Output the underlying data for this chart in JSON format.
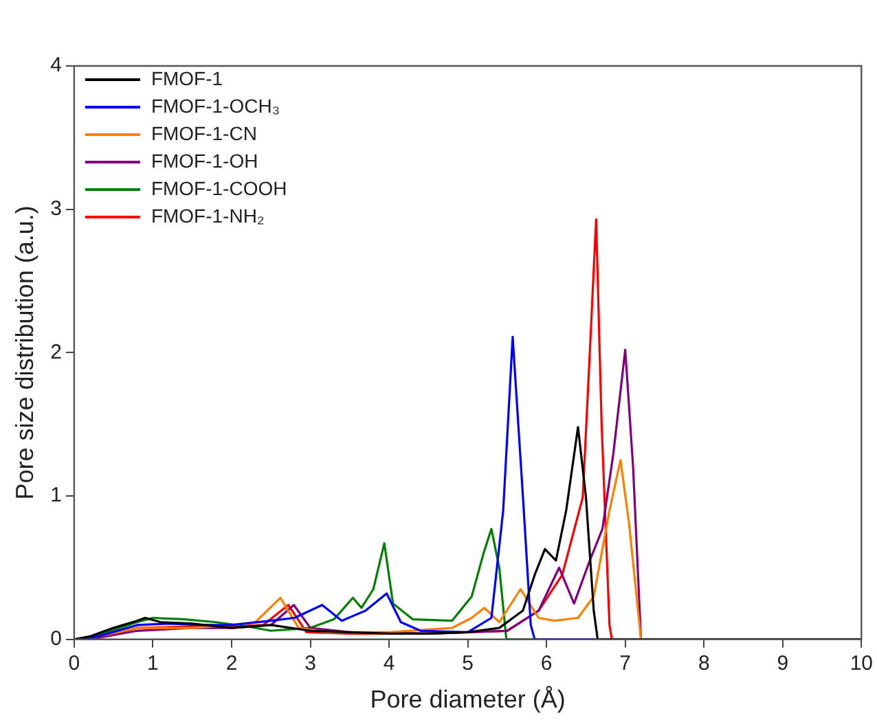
{
  "chart_data": {
    "type": "line",
    "xlabel": "Pore diameter (Å)",
    "ylabel": "Pore size distribution (a.u.)",
    "xlim": [
      0,
      10
    ],
    "ylim": [
      0,
      4
    ],
    "xticks": [
      0,
      1,
      2,
      3,
      4,
      5,
      6,
      7,
      8,
      9,
      10
    ],
    "yticks": [
      0,
      1,
      2,
      3,
      4
    ],
    "grid": false,
    "legend": "top left",
    "marker": "none",
    "line_style": "solid",
    "series": [
      {
        "name": "FMOF-1",
        "color": "#000000",
        "x": [
          0,
          0.2,
          0.5,
          0.8,
          0.9,
          1.1,
          1.5,
          2.0,
          2.5,
          3.0,
          3.5,
          4.0,
          4.5,
          5.0,
          5.4,
          5.7,
          5.85,
          5.98,
          6.12,
          6.25,
          6.4,
          6.5,
          6.6,
          6.65,
          10
        ],
        "values": [
          0,
          0.02,
          0.08,
          0.13,
          0.15,
          0.12,
          0.11,
          0.08,
          0.1,
          0.06,
          0.05,
          0.04,
          0.04,
          0.05,
          0.08,
          0.2,
          0.45,
          0.63,
          0.55,
          0.9,
          1.48,
          1.0,
          0.2,
          0,
          0
        ]
      },
      {
        "name": "FMOF-1-OCH₃",
        "color": "#0000ff",
        "x": [
          0,
          0.3,
          0.8,
          1.2,
          1.6,
          2.0,
          2.5,
          2.8,
          3.15,
          3.4,
          3.7,
          3.97,
          4.15,
          4.4,
          5.0,
          5.3,
          5.45,
          5.57,
          5.7,
          5.8,
          5.85,
          10
        ],
        "values": [
          0,
          0.02,
          0.1,
          0.11,
          0.1,
          0.1,
          0.13,
          0.15,
          0.24,
          0.13,
          0.2,
          0.32,
          0.12,
          0.06,
          0.05,
          0.15,
          0.9,
          2.11,
          1.0,
          0.1,
          0,
          0
        ]
      },
      {
        "name": "FMOF-1-CN",
        "color": "#ff7f00",
        "x": [
          0,
          0.3,
          0.8,
          1.5,
          2.0,
          2.3,
          2.62,
          2.85,
          3.2,
          4.0,
          4.8,
          5.05,
          5.21,
          5.4,
          5.67,
          5.9,
          6.1,
          6.4,
          6.6,
          6.8,
          6.94,
          7.05,
          7.2,
          10
        ],
        "values": [
          0,
          0.02,
          0.08,
          0.08,
          0.1,
          0.12,
          0.29,
          0.08,
          0.05,
          0.05,
          0.08,
          0.15,
          0.22,
          0.12,
          0.35,
          0.15,
          0.13,
          0.15,
          0.3,
          0.9,
          1.25,
          0.8,
          0,
          0
        ]
      },
      {
        "name": "FMOF-1-OH",
        "color": "#800080",
        "x": [
          0,
          0.3,
          0.8,
          1.5,
          2.0,
          2.5,
          2.79,
          3.0,
          3.5,
          4.5,
          5.5,
          5.9,
          6.16,
          6.35,
          6.55,
          6.71,
          6.85,
          7.0,
          7.1,
          7.2,
          10
        ],
        "values": [
          0,
          0.01,
          0.06,
          0.08,
          0.08,
          0.1,
          0.24,
          0.08,
          0.05,
          0.04,
          0.06,
          0.2,
          0.5,
          0.25,
          0.55,
          0.77,
          1.3,
          2.02,
          1.2,
          0,
          0
        ]
      },
      {
        "name": "FMOF-1-COOH",
        "color": "#008000",
        "x": [
          0,
          0.3,
          0.8,
          1.0,
          1.4,
          1.8,
          2.2,
          2.5,
          3.0,
          3.3,
          3.54,
          3.65,
          3.8,
          3.94,
          4.05,
          4.3,
          4.8,
          5.05,
          5.2,
          5.3,
          5.4,
          5.49,
          10
        ],
        "values": [
          0,
          0.03,
          0.12,
          0.15,
          0.14,
          0.12,
          0.09,
          0.06,
          0.08,
          0.14,
          0.29,
          0.22,
          0.35,
          0.67,
          0.25,
          0.14,
          0.13,
          0.3,
          0.6,
          0.77,
          0.5,
          0,
          0
        ]
      },
      {
        "name": "FMOF-1-NH₂",
        "color": "#ff0000",
        "x": [
          0,
          0.3,
          0.8,
          1.5,
          2.0,
          2.4,
          2.72,
          2.95,
          3.5,
          4.5,
          5.5,
          5.9,
          6.2,
          6.46,
          6.55,
          6.63,
          6.7,
          6.8,
          6.83,
          10
        ],
        "values": [
          0,
          0.01,
          0.08,
          0.09,
          0.09,
          0.1,
          0.24,
          0.05,
          0.04,
          0.04,
          0.06,
          0.2,
          0.45,
          0.99,
          2.0,
          2.93,
          1.5,
          0.1,
          0,
          0
        ]
      }
    ]
  }
}
